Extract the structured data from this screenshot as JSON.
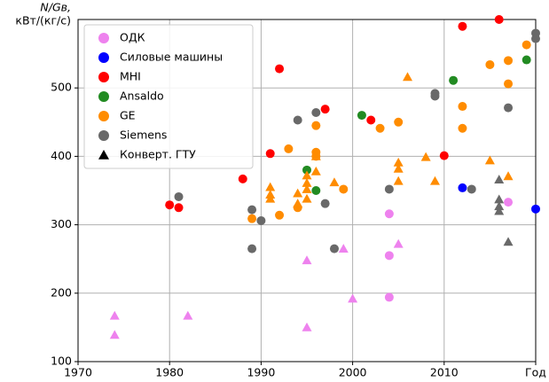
{
  "chart_data": {
    "type": "scatter",
    "y_label_lines": [
      "N/Gв,",
      "кВт/(кг/с)"
    ],
    "xlim": [
      1970,
      2020
    ],
    "ylim": [
      100,
      600
    ],
    "xticks": [
      1970,
      1980,
      1990,
      2000,
      2010,
      {
        "value": 2020,
        "label": "Год"
      }
    ],
    "yticks": [
      100,
      200,
      300,
      400,
      500
    ],
    "grid": true,
    "legend": "upper left",
    "series": [
      {
        "name": "ОДК",
        "color": "#ee82ee",
        "marker": "o",
        "x": [
          2004,
          2004,
          2004,
          2017
        ],
        "values": [
          316,
          255,
          194,
          333
        ]
      },
      {
        "name": "Силовые машины",
        "color": "#0000ff",
        "marker": "o",
        "x": [
          2012,
          2020
        ],
        "values": [
          354,
          323
        ]
      },
      {
        "name": "MHI",
        "color": "#ff0000",
        "marker": "o",
        "x": [
          1980,
          1981,
          1988,
          1992,
          1991,
          1997,
          2002,
          2010,
          2012,
          2016
        ],
        "values": [
          329,
          325,
          367,
          528,
          404,
          469,
          453,
          401,
          590,
          600
        ]
      },
      {
        "name": "Ansaldo",
        "color": "#228b22",
        "marker": "o",
        "x": [
          1995,
          1996,
          2001,
          2011,
          2019
        ],
        "values": [
          380,
          350,
          460,
          511,
          541
        ]
      },
      {
        "name": "GE",
        "color": "#ff8c00",
        "marker": "o",
        "x": [
          1989,
          1992,
          1993,
          1994,
          1996,
          1996,
          1996,
          1999,
          2003,
          2005,
          2012,
          2012,
          2015,
          2017,
          2017,
          2019
        ],
        "values": [
          309,
          314,
          411,
          325,
          406,
          400,
          445,
          352,
          441,
          450,
          473,
          441,
          534,
          540,
          506,
          563
        ]
      },
      {
        "name": "Siemens",
        "color": "#696969",
        "marker": "o",
        "x": [
          1989,
          1989,
          1981,
          1990,
          1994,
          1996,
          1997,
          1998,
          2004,
          2009,
          2009,
          2013,
          2017,
          2020,
          2020
        ],
        "values": [
          265,
          322,
          341,
          306,
          453,
          464,
          331,
          265,
          352,
          492,
          488,
          352,
          471,
          580,
          572
        ]
      },
      {
        "color": "#ee82ee",
        "marker": "^",
        "x": [
          1974,
          1974,
          1982,
          1995,
          1995,
          1999,
          2000,
          2005
        ],
        "values": [
          167,
          139,
          167,
          248,
          150,
          265,
          192,
          272
        ]
      },
      {
        "color": "#ff8c00",
        "marker": "^",
        "x": [
          1991,
          1991,
          1991,
          1994,
          1994,
          1995,
          1995,
          1995,
          1995,
          1996,
          1996,
          1998,
          2005,
          2005,
          2005,
          2006,
          2008,
          2009,
          2015,
          2017
        ],
        "values": [
          355,
          344,
          338,
          346,
          331,
          361,
          352,
          338,
          372,
          378,
          400,
          362,
          391,
          382,
          364,
          516,
          399,
          364,
          394,
          371
        ]
      },
      {
        "color": "#696969",
        "marker": "^",
        "x": [
          2016,
          2016,
          2016,
          2016,
          2017
        ],
        "values": [
          366,
          337,
          327,
          320,
          275
        ]
      }
    ],
    "marker_legend": {
      "label": "Конверт. ГТУ",
      "marker": "^",
      "color": "#000000"
    }
  }
}
